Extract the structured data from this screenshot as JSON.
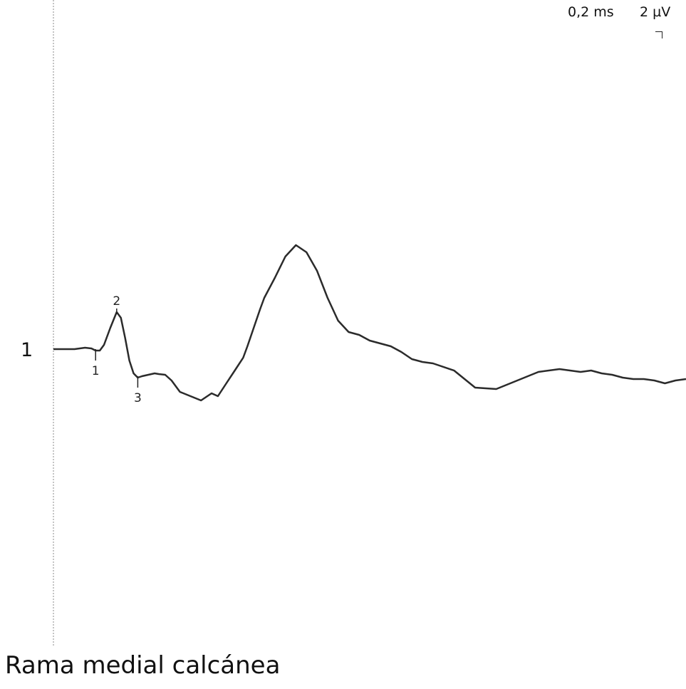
{
  "scale": {
    "time_label": "0,2 ms",
    "amplitude_label": "2 µV"
  },
  "trace": {
    "number": "1",
    "title": "Rama medial calcánea"
  },
  "colors": {
    "trace": "#2b2b2b",
    "marker_label": "#222222",
    "cursor_line": "#8a8a8a"
  },
  "chart_data": {
    "type": "line",
    "title": "Rama medial calcánea",
    "xlabel": "",
    "ylabel": "",
    "x_unit": "ms",
    "y_unit": "µV",
    "xlim": [
      0,
      3.0
    ],
    "ylim": [
      -10,
      10
    ],
    "grid": false,
    "series": [
      {
        "x": [
          0,
          0.1,
          0.15,
          0.18,
          0.2,
          0.22,
          0.24,
          0.27,
          0.3,
          0.32,
          0.34,
          0.36,
          0.38,
          0.4,
          0.42,
          0.45,
          0.48,
          0.5,
          0.53,
          0.56,
          0.6,
          0.65,
          0.7,
          0.75,
          0.78,
          0.82,
          0.86,
          0.9,
          0.92,
          0.95,
          0.98,
          1.0,
          1.05,
          1.1,
          1.15,
          1.2,
          1.25,
          1.3,
          1.35,
          1.4,
          1.45,
          1.5,
          1.55,
          1.6,
          1.65,
          1.7,
          1.75,
          1.8,
          1.9,
          2.0,
          2.1,
          2.2,
          2.3,
          2.4,
          2.5,
          2.55,
          2.6,
          2.65,
          2.7,
          2.75,
          2.8,
          2.85,
          2.9,
          2.95,
          3.0
        ],
        "y": [
          0,
          0,
          0.1,
          0.05,
          -0.1,
          -0.1,
          0.3,
          1.5,
          2.6,
          2.2,
          0.8,
          -0.8,
          -1.7,
          -2.0,
          -1.9,
          -1.8,
          -1.7,
          -1.75,
          -1.8,
          -2.2,
          -3.0,
          -3.3,
          -3.6,
          -3.1,
          -3.3,
          -2.4,
          -1.5,
          -0.6,
          0.2,
          1.5,
          2.8,
          3.6,
          5.0,
          6.5,
          7.3,
          6.8,
          5.5,
          3.6,
          2.0,
          1.2,
          1.0,
          0.6,
          0.4,
          0.2,
          -0.2,
          -0.7,
          -0.9,
          -1.0,
          -1.5,
          -2.7,
          -2.8,
          -2.2,
          -1.6,
          -1.4,
          -1.6,
          -1.5,
          -1.7,
          -1.8,
          -2.0,
          -2.1,
          -2.1,
          -2.2,
          -2.4,
          -2.2,
          -2.1
        ]
      }
    ],
    "markers": [
      {
        "label": "1",
        "x": 0.2
      },
      {
        "label": "2",
        "x": 0.3
      },
      {
        "label": "3",
        "x": 0.4
      }
    ]
  }
}
